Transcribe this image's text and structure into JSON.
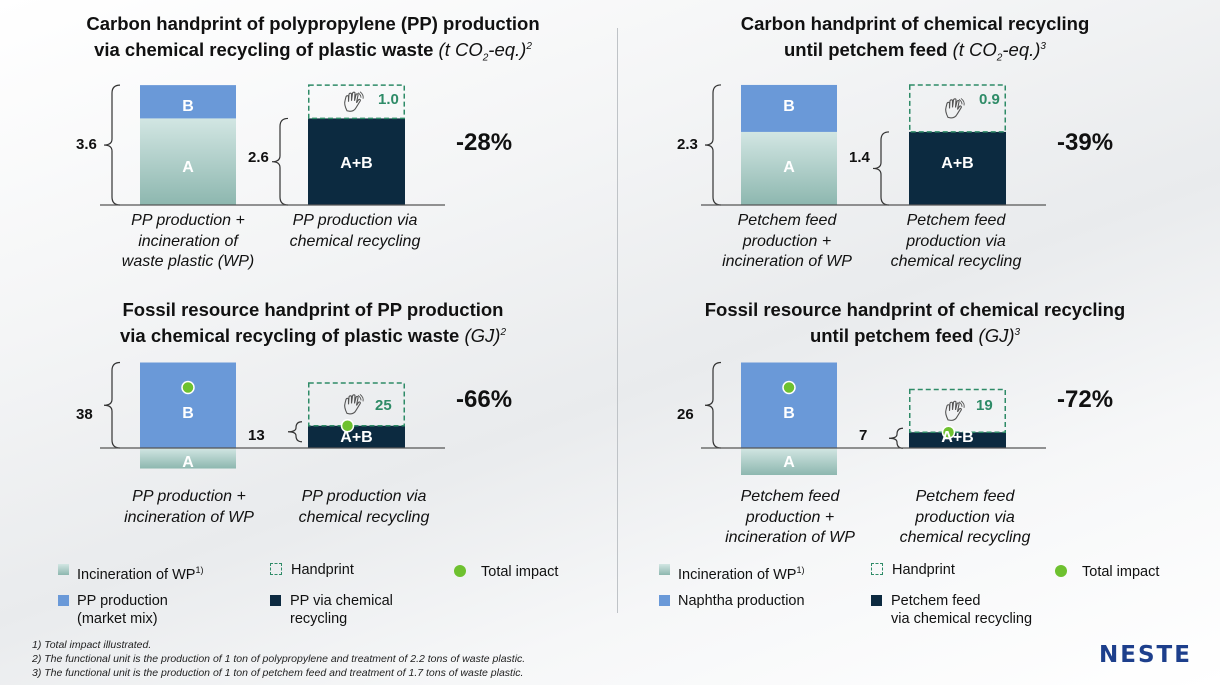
{
  "colors": {
    "pp_production": "#6a99d8",
    "incineration_top": "#d2e6e3",
    "incineration_bottom": "#8db7af",
    "chemical_recycling": "#0c2a40",
    "handprint": "#2e8b67",
    "total_impact": "#6ec12f",
    "divider": "#bfc3c7",
    "logo": "#1d3f8c"
  },
  "chart_data": [
    {
      "type": "bar",
      "id": "carbon_pp",
      "title_main": "Carbon handprint of polypropylene (PP) production",
      "title_line2": "via chemical recycling of plastic waste",
      "unit_pre": "(t CO",
      "unit_sub": "2",
      "unit_post": "-eq.)",
      "footnote_ref": "2",
      "bars": [
        {
          "category": "PP production + incineration of waste plastic (WP)",
          "category_lines": [
            "PP production +",
            "incineration of",
            "waste plastic (WP)"
          ],
          "segments": [
            {
              "label": "A",
              "series": "Incineration of WP",
              "value": 2.6
            },
            {
              "label": "B",
              "series": "PP production",
              "value": 1.0
            }
          ],
          "total": 3.6,
          "total_label": "3.6"
        },
        {
          "category": "PP production via chemical recycling",
          "category_lines": [
            "PP production via",
            "chemical recycling"
          ],
          "segments": [
            {
              "label": "A+B",
              "series": "PP via chemical recycling",
              "value": 2.6
            }
          ],
          "handprint": 1.0,
          "handprint_label": "1.0",
          "total": 2.6,
          "total_label": "2.6"
        }
      ],
      "change_label": "-28%"
    },
    {
      "type": "bar",
      "id": "carbon_petchem",
      "title_main": "Carbon handprint of chemical recycling",
      "title_line2": "until petchem feed",
      "unit_pre": "(t CO",
      "unit_sub": "2",
      "unit_post": "-eq.)",
      "footnote_ref": "3",
      "bars": [
        {
          "category": "Petchem feed production + incineration of WP",
          "category_lines": [
            "Petchem feed",
            "production +",
            "incineration of WP"
          ],
          "segments": [
            {
              "label": "A",
              "series": "Incineration of WP",
              "value": 1.4
            },
            {
              "label": "B",
              "series": "Naphtha production",
              "value": 0.9
            }
          ],
          "total": 2.3,
          "total_label": "2.3"
        },
        {
          "category": "Petchem feed production via chemical recycling",
          "category_lines": [
            "Petchem feed",
            "production via",
            "chemical recycling"
          ],
          "segments": [
            {
              "label": "A+B",
              "series": "Petchem feed via chemical recycling",
              "value": 1.4
            }
          ],
          "handprint": 0.9,
          "handprint_label": "0.9",
          "total": 1.4,
          "total_label": "1.4"
        }
      ],
      "change_label": "-39%"
    },
    {
      "type": "bar",
      "id": "fossil_pp",
      "title_main": "Fossil resource handprint of PP production",
      "title_line2": "via chemical recycling of plastic waste",
      "unit_pre": "(GJ)",
      "unit_sub": "",
      "unit_post": "",
      "footnote_ref": "2",
      "bars": [
        {
          "category": "PP production + incineration of WP",
          "category_lines": [
            "PP production +",
            "incineration of WP"
          ],
          "segments": [
            {
              "label": "A",
              "series": "Incineration of WP",
              "value": -12
            },
            {
              "label": "B",
              "series": "PP production",
              "value": 50
            }
          ],
          "total": 38,
          "total_label": "38"
        },
        {
          "category": "PP production via chemical recycling",
          "category_lines": [
            "PP production via",
            "chemical recycling"
          ],
          "segments": [
            {
              "label": "A+B",
              "series": "PP via chemical recycling",
              "value": 13
            }
          ],
          "handprint": 25,
          "handprint_label": "25",
          "total": 13,
          "total_label": "13"
        }
      ],
      "change_label": "-66%"
    },
    {
      "type": "bar",
      "id": "fossil_petchem",
      "title_main": "Fossil resource handprint of chemical recycling",
      "title_line2": "until petchem feed",
      "unit_pre": "(GJ)",
      "unit_sub": "",
      "unit_post": "",
      "footnote_ref": "3",
      "bars": [
        {
          "category": "Petchem feed production + incineration of WP",
          "category_lines": [
            "Petchem feed",
            "production +",
            "incineration of WP"
          ],
          "segments": [
            {
              "label": "A",
              "series": "Incineration of WP",
              "value": -12
            },
            {
              "label": "B",
              "series": "Naphtha production",
              "value": 38
            }
          ],
          "total": 26,
          "total_label": "26"
        },
        {
          "category": "Petchem feed production via chemical recycling",
          "category_lines": [
            "Petchem feed",
            "production via",
            "chemical recycling"
          ],
          "segments": [
            {
              "label": "A+B",
              "series": "Petchem feed via chemical recycling",
              "value": 7
            }
          ],
          "handprint": 19,
          "handprint_label": "19",
          "total": 7,
          "total_label": "7"
        }
      ],
      "change_label": "-72%"
    }
  ],
  "legend_left": {
    "incineration": "Incineration of WP",
    "incineration_sup": "1)",
    "handprint": "Handprint",
    "total_impact": "Total impact",
    "production_line1": "PP production",
    "production_line2": "(market mix)",
    "recycled_line1": "PP via chemical",
    "recycled_line2": "recycling"
  },
  "legend_right": {
    "incineration": "Incineration of WP",
    "incineration_sup": "1)",
    "handprint": "Handprint",
    "total_impact": "Total impact",
    "production_line1": "Naphtha production",
    "recycled_line1": "Petchem feed",
    "recycled_line2": "via chemical recycling"
  },
  "footnotes": [
    "1) Total impact illustrated.",
    "2) The functional unit is the production of 1 ton of polypropylene and treatment of 2.2 tons of waste plastic.",
    "3) The functional unit is the production of 1 ton of petchem feed and treatment of 1.7 tons of waste plastic."
  ],
  "logo_text": "NESTE"
}
